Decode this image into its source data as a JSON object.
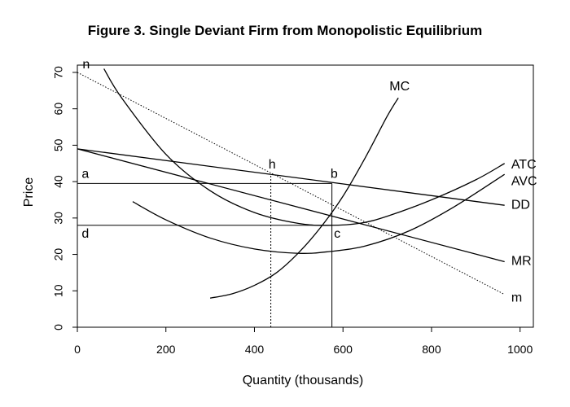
{
  "chart_data": {
    "type": "line",
    "title": "Figure 3. Single Deviant Firm from Monopolistic Equilibrium",
    "xlabel": "Quantity (thousands)",
    "ylabel": "Price",
    "xlim": [
      0,
      1030
    ],
    "ylim": [
      0,
      72
    ],
    "xticks": [
      "0",
      "200",
      "400",
      "600",
      "800",
      "1000"
    ],
    "yticks": [
      "0",
      "10",
      "20",
      "30",
      "40",
      "50",
      "60",
      "70"
    ],
    "grid": false,
    "series": [
      {
        "name": "MC",
        "style": "solid",
        "points": [
          [
            300,
            8
          ],
          [
            350,
            9.2
          ],
          [
            400,
            11.5
          ],
          [
            450,
            15
          ],
          [
            500,
            20.5
          ],
          [
            550,
            27.5
          ],
          [
            600,
            36
          ],
          [
            650,
            46.5
          ],
          [
            700,
            58
          ],
          [
            725,
            63
          ]
        ]
      },
      {
        "name": "ATC",
        "style": "solid",
        "points": [
          [
            60,
            71
          ],
          [
            100,
            63
          ],
          [
            200,
            47.5
          ],
          [
            300,
            37.5
          ],
          [
            400,
            31.5
          ],
          [
            500,
            28.5
          ],
          [
            570,
            28
          ],
          [
            640,
            28.6
          ],
          [
            700,
            30.5
          ],
          [
            800,
            35
          ],
          [
            900,
            40.5
          ],
          [
            965,
            45
          ]
        ]
      },
      {
        "name": "AVC",
        "style": "solid",
        "points": [
          [
            125,
            34.5
          ],
          [
            200,
            29.5
          ],
          [
            300,
            24.5
          ],
          [
            400,
            21.5
          ],
          [
            500,
            20.3
          ],
          [
            570,
            20.8
          ],
          [
            650,
            22.3
          ],
          [
            750,
            26.5
          ],
          [
            850,
            33
          ],
          [
            965,
            42
          ]
        ]
      },
      {
        "name": "DD",
        "style": "solid",
        "points": [
          [
            0,
            49
          ],
          [
            965,
            33.5
          ]
        ]
      },
      {
        "name": "MR",
        "style": "solid",
        "points": [
          [
            0,
            49
          ],
          [
            965,
            18
          ]
        ]
      },
      {
        "name": "m",
        "style": "dotted",
        "points": [
          [
            0,
            70
          ],
          [
            965,
            9
          ]
        ]
      }
    ],
    "reference_lines": [
      {
        "from": [
          0,
          39.5
        ],
        "to": [
          575,
          39.5
        ],
        "style": "solid"
      },
      {
        "from": [
          0,
          28
        ],
        "to": [
          575,
          28
        ],
        "style": "solid"
      },
      {
        "from": [
          575,
          0
        ],
        "to": [
          575,
          39.5
        ],
        "style": "solid"
      },
      {
        "from": [
          437,
          0
        ],
        "to": [
          437,
          42
        ],
        "style": "dotted"
      }
    ],
    "point_labels": [
      {
        "text": "n",
        "x": 20,
        "y": 72
      },
      {
        "text": "h",
        "x": 440,
        "y": 44.5
      },
      {
        "text": "b",
        "x": 580,
        "y": 42
      },
      {
        "text": "a",
        "x": 18,
        "y": 42
      },
      {
        "text": "d",
        "x": 18,
        "y": 25.5
      },
      {
        "text": "c",
        "x": 587,
        "y": 25.5
      }
    ],
    "curve_labels": [
      {
        "text": "MC",
        "x": 705,
        "y": 66
      },
      {
        "text": "ATC",
        "x": 980,
        "y": 44.5
      },
      {
        "text": "AVC",
        "x": 980,
        "y": 40
      },
      {
        "text": "DD",
        "x": 980,
        "y": 33.5
      },
      {
        "text": "MR",
        "x": 980,
        "y": 18
      },
      {
        "text": "m",
        "x": 980,
        "y": 8
      }
    ]
  }
}
